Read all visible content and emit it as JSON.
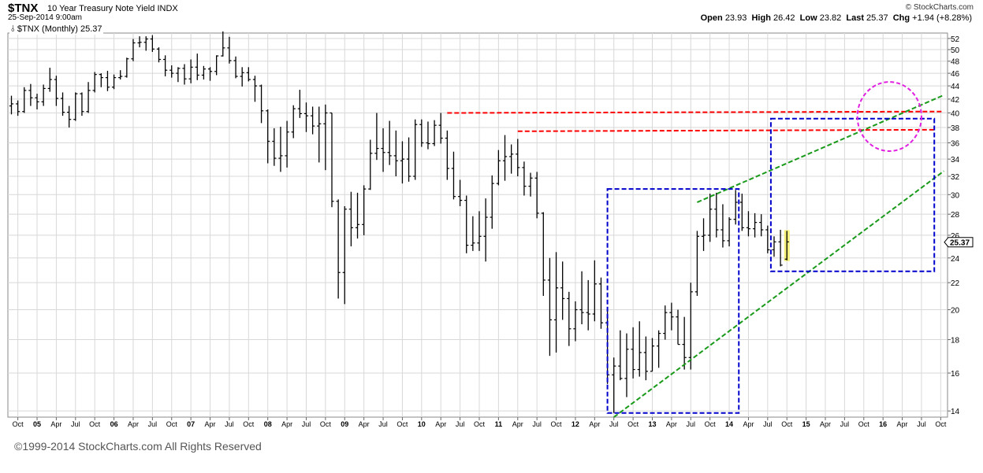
{
  "header": {
    "symbol": "$TNX",
    "name": "10 Year Treasury Note Yield",
    "exchange": "INDX",
    "date": "25-Sep-2014 9:00am",
    "watermark": "© StockCharts.com",
    "open_label": "Open",
    "open": "23.93",
    "high_label": "High",
    "high": "26.42",
    "low_label": "Low",
    "low": "23.82",
    "last_label": "Last",
    "last": "25.37",
    "chg_label": "Chg",
    "chg": "+1.94 (+8.28%)"
  },
  "legend": {
    "symbol": "$TNX",
    "period": "(Monthly)",
    "value": "25.37"
  },
  "footer": {
    "copyright": "©1999-2014 StockCharts.com All Rights Reserved"
  },
  "colors": {
    "bars": "#000000",
    "grid": "#d8d8d8",
    "resistance": "#ff0000",
    "channel": "#1a9a1a",
    "box": "#0000cc",
    "circle": "#e020e0",
    "highlight": "#f5f07a"
  },
  "chart_data": {
    "type": "ohlc-bar",
    "scale": "log",
    "ylim": [
      13.7,
      53
    ],
    "y_ticks": [
      14,
      16,
      18,
      20,
      22,
      24,
      26,
      28,
      30,
      32,
      34,
      36,
      38,
      40,
      42,
      44,
      46,
      48,
      50,
      52
    ],
    "x_start": "2004-09",
    "x_end": "2015-10",
    "x_ticks": [
      {
        "m": 1,
        "label": "Oct"
      },
      {
        "m": 4,
        "label": "05"
      },
      {
        "m": 7,
        "label": "Apr"
      },
      {
        "m": 10,
        "label": "Jul"
      },
      {
        "m": 13,
        "label": "Oct"
      },
      {
        "m": 16,
        "label": "06"
      },
      {
        "m": 19,
        "label": "Apr"
      },
      {
        "m": 22,
        "label": "Jul"
      },
      {
        "m": 25,
        "label": "Oct"
      },
      {
        "m": 28,
        "label": "07"
      },
      {
        "m": 31,
        "label": "Apr"
      },
      {
        "m": 34,
        "label": "Jul"
      },
      {
        "m": 37,
        "label": "Oct"
      },
      {
        "m": 40,
        "label": "08"
      },
      {
        "m": 43,
        "label": "Apr"
      },
      {
        "m": 46,
        "label": "Jul"
      },
      {
        "m": 49,
        "label": "Oct"
      },
      {
        "m": 52,
        "label": "09"
      },
      {
        "m": 55,
        "label": "Apr"
      },
      {
        "m": 58,
        "label": "Jul"
      },
      {
        "m": 61,
        "label": "Oct"
      },
      {
        "m": 64,
        "label": "10"
      },
      {
        "m": 67,
        "label": "Apr"
      },
      {
        "m": 70,
        "label": "Jul"
      },
      {
        "m": 73,
        "label": "Oct"
      },
      {
        "m": 76,
        "label": "11"
      },
      {
        "m": 79,
        "label": "Apr"
      },
      {
        "m": 82,
        "label": "Jul"
      },
      {
        "m": 85,
        "label": "Oct"
      },
      {
        "m": 88,
        "label": "12"
      },
      {
        "m": 91,
        "label": "Apr"
      },
      {
        "m": 94,
        "label": "Jul"
      },
      {
        "m": 97,
        "label": "Oct"
      },
      {
        "m": 100,
        "label": "13"
      },
      {
        "m": 103,
        "label": "Apr"
      },
      {
        "m": 106,
        "label": "Jul"
      },
      {
        "m": 109,
        "label": "Oct"
      },
      {
        "m": 112,
        "label": "14"
      },
      {
        "m": 115,
        "label": "Apr"
      },
      {
        "m": 118,
        "label": "Jul"
      },
      {
        "m": 121,
        "label": "Oct"
      },
      {
        "m": 124,
        "label": "15"
      },
      {
        "m": 127,
        "label": "Apr"
      },
      {
        "m": 130,
        "label": "Jul"
      },
      {
        "m": 133,
        "label": "Oct"
      },
      {
        "m": 136,
        "label": "16"
      },
      {
        "m": 139,
        "label": "Apr"
      },
      {
        "m": 142,
        "label": "Jul"
      },
      {
        "m": 145,
        "label": "Oct"
      }
    ],
    "bars": [
      {
        "m": 0,
        "o": 41.0,
        "h": 42.5,
        "l": 39.8,
        "c": 41.3
      },
      {
        "m": 1,
        "o": 41.3,
        "h": 41.8,
        "l": 39.6,
        "c": 40.2
      },
      {
        "m": 2,
        "o": 40.2,
        "h": 43.8,
        "l": 40.0,
        "c": 43.3
      },
      {
        "m": 3,
        "o": 43.3,
        "h": 44.3,
        "l": 41.0,
        "c": 42.2
      },
      {
        "m": 4,
        "o": 42.2,
        "h": 42.8,
        "l": 40.5,
        "c": 41.6
      },
      {
        "m": 5,
        "o": 41.6,
        "h": 44.2,
        "l": 41.0,
        "c": 43.6
      },
      {
        "m": 6,
        "o": 43.6,
        "h": 46.9,
        "l": 43.1,
        "c": 45.0
      },
      {
        "m": 7,
        "o": 45.0,
        "h": 45.6,
        "l": 41.0,
        "c": 42.1
      },
      {
        "m": 8,
        "o": 42.1,
        "h": 43.0,
        "l": 39.6,
        "c": 40.1
      },
      {
        "m": 9,
        "o": 40.1,
        "h": 41.0,
        "l": 38.0,
        "c": 39.1
      },
      {
        "m": 10,
        "o": 39.1,
        "h": 43.0,
        "l": 38.9,
        "c": 42.8
      },
      {
        "m": 11,
        "o": 42.8,
        "h": 43.0,
        "l": 39.6,
        "c": 40.2
      },
      {
        "m": 12,
        "o": 40.2,
        "h": 44.6,
        "l": 40.0,
        "c": 43.3
      },
      {
        "m": 13,
        "o": 43.3,
        "h": 46.2,
        "l": 43.0,
        "c": 45.8
      },
      {
        "m": 14,
        "o": 45.8,
        "h": 46.0,
        "l": 43.8,
        "c": 45.3
      },
      {
        "m": 15,
        "o": 45.3,
        "h": 46.4,
        "l": 43.2,
        "c": 43.8
      },
      {
        "m": 16,
        "o": 43.8,
        "h": 45.8,
        "l": 43.5,
        "c": 45.3
      },
      {
        "m": 17,
        "o": 45.3,
        "h": 46.5,
        "l": 45.0,
        "c": 45.5
      },
      {
        "m": 18,
        "o": 45.5,
        "h": 48.6,
        "l": 45.3,
        "c": 48.4
      },
      {
        "m": 19,
        "o": 48.4,
        "h": 51.9,
        "l": 48.0,
        "c": 51.2
      },
      {
        "m": 20,
        "o": 51.2,
        "h": 52.4,
        "l": 50.4,
        "c": 51.3
      },
      {
        "m": 21,
        "o": 51.3,
        "h": 52.4,
        "l": 49.8,
        "c": 51.9
      },
      {
        "m": 22,
        "o": 51.9,
        "h": 52.6,
        "l": 49.6,
        "c": 50.1
      },
      {
        "m": 23,
        "o": 50.1,
        "h": 50.4,
        "l": 47.8,
        "c": 48.3
      },
      {
        "m": 24,
        "o": 48.3,
        "h": 49.0,
        "l": 45.5,
        "c": 46.5
      },
      {
        "m": 25,
        "o": 46.5,
        "h": 47.3,
        "l": 45.3,
        "c": 46.0
      },
      {
        "m": 26,
        "o": 46.0,
        "h": 47.0,
        "l": 44.6,
        "c": 46.8
      },
      {
        "m": 27,
        "o": 46.8,
        "h": 47.5,
        "l": 44.2,
        "c": 45.1
      },
      {
        "m": 28,
        "o": 45.1,
        "h": 48.3,
        "l": 44.4,
        "c": 47.0
      },
      {
        "m": 29,
        "o": 47.0,
        "h": 49.3,
        "l": 44.9,
        "c": 45.7
      },
      {
        "m": 30,
        "o": 45.7,
        "h": 47.2,
        "l": 45.0,
        "c": 46.7
      },
      {
        "m": 31,
        "o": 46.7,
        "h": 47.0,
        "l": 44.8,
        "c": 46.3
      },
      {
        "m": 32,
        "o": 46.3,
        "h": 49.0,
        "l": 45.7,
        "c": 48.9
      },
      {
        "m": 33,
        "o": 48.9,
        "h": 53.3,
        "l": 48.8,
        "c": 50.3
      },
      {
        "m": 34,
        "o": 50.3,
        "h": 52.3,
        "l": 47.6,
        "c": 48.1
      },
      {
        "m": 35,
        "o": 48.1,
        "h": 48.8,
        "l": 45.2,
        "c": 45.5
      },
      {
        "m": 36,
        "o": 45.5,
        "h": 47.0,
        "l": 43.9,
        "c": 46.1
      },
      {
        "m": 37,
        "o": 46.1,
        "h": 47.0,
        "l": 44.7,
        "c": 45.0
      },
      {
        "m": 38,
        "o": 45.0,
        "h": 45.6,
        "l": 41.6,
        "c": 44.0
      },
      {
        "m": 39,
        "o": 44.0,
        "h": 44.2,
        "l": 38.6,
        "c": 40.3
      },
      {
        "m": 40,
        "o": 40.3,
        "h": 40.5,
        "l": 33.5,
        "c": 36.2
      },
      {
        "m": 41,
        "o": 36.2,
        "h": 37.9,
        "l": 33.2,
        "c": 34.1
      },
      {
        "m": 42,
        "o": 34.1,
        "h": 38.1,
        "l": 32.5,
        "c": 34.4
      },
      {
        "m": 43,
        "o": 34.4,
        "h": 38.9,
        "l": 33.0,
        "c": 37.4
      },
      {
        "m": 44,
        "o": 37.4,
        "h": 41.1,
        "l": 36.6,
        "c": 40.6
      },
      {
        "m": 45,
        "o": 40.6,
        "h": 43.4,
        "l": 39.3,
        "c": 39.9
      },
      {
        "m": 46,
        "o": 39.9,
        "h": 41.5,
        "l": 37.4,
        "c": 39.6
      },
      {
        "m": 47,
        "o": 39.6,
        "h": 40.9,
        "l": 37.1,
        "c": 38.2
      },
      {
        "m": 48,
        "o": 38.2,
        "h": 40.9,
        "l": 33.6,
        "c": 38.5
      },
      {
        "m": 49,
        "o": 38.5,
        "h": 41.2,
        "l": 32.7,
        "c": 40.0
      },
      {
        "m": 50,
        "o": 40.0,
        "h": 40.0,
        "l": 28.7,
        "c": 29.3
      },
      {
        "m": 51,
        "o": 29.3,
        "h": 29.5,
        "l": 20.8,
        "c": 22.8
      },
      {
        "m": 52,
        "o": 22.8,
        "h": 28.8,
        "l": 20.4,
        "c": 28.5
      },
      {
        "m": 53,
        "o": 28.5,
        "h": 30.3,
        "l": 25.0,
        "c": 26.7
      },
      {
        "m": 54,
        "o": 26.7,
        "h": 30.2,
        "l": 25.7,
        "c": 27.0
      },
      {
        "m": 55,
        "o": 27.0,
        "h": 31.0,
        "l": 26.0,
        "c": 30.6
      },
      {
        "m": 56,
        "o": 30.6,
        "h": 36.4,
        "l": 30.5,
        "c": 34.7
      },
      {
        "m": 57,
        "o": 34.7,
        "h": 40.0,
        "l": 33.9,
        "c": 35.3
      },
      {
        "m": 58,
        "o": 35.3,
        "h": 37.9,
        "l": 32.5,
        "c": 34.8
      },
      {
        "m": 59,
        "o": 34.8,
        "h": 38.9,
        "l": 33.3,
        "c": 34.4
      },
      {
        "m": 60,
        "o": 34.4,
        "h": 37.6,
        "l": 32.0,
        "c": 33.8
      },
      {
        "m": 61,
        "o": 33.8,
        "h": 36.2,
        "l": 31.2,
        "c": 34.0
      },
      {
        "m": 62,
        "o": 34.0,
        "h": 36.7,
        "l": 31.4,
        "c": 32.0
      },
      {
        "m": 63,
        "o": 32.0,
        "h": 39.1,
        "l": 31.6,
        "c": 38.4
      },
      {
        "m": 64,
        "o": 38.4,
        "h": 39.1,
        "l": 35.5,
        "c": 36.0
      },
      {
        "m": 65,
        "o": 36.0,
        "h": 38.8,
        "l": 35.2,
        "c": 35.9
      },
      {
        "m": 66,
        "o": 35.9,
        "h": 39.0,
        "l": 35.6,
        "c": 38.3
      },
      {
        "m": 67,
        "o": 38.3,
        "h": 40.0,
        "l": 35.9,
        "c": 36.6
      },
      {
        "m": 68,
        "o": 36.6,
        "h": 37.6,
        "l": 31.6,
        "c": 32.9
      },
      {
        "m": 69,
        "o": 32.9,
        "h": 34.9,
        "l": 29.5,
        "c": 29.8
      },
      {
        "m": 70,
        "o": 29.8,
        "h": 31.6,
        "l": 28.8,
        "c": 29.4
      },
      {
        "m": 71,
        "o": 29.4,
        "h": 29.9,
        "l": 24.4,
        "c": 25.1
      },
      {
        "m": 72,
        "o": 25.1,
        "h": 27.8,
        "l": 24.6,
        "c": 25.3
      },
      {
        "m": 73,
        "o": 25.3,
        "h": 28.3,
        "l": 24.6,
        "c": 25.9
      },
      {
        "m": 74,
        "o": 25.9,
        "h": 29.6,
        "l": 23.7,
        "c": 27.7
      },
      {
        "m": 75,
        "o": 27.7,
        "h": 32.1,
        "l": 26.6,
        "c": 31.2
      },
      {
        "m": 76,
        "o": 31.2,
        "h": 35.1,
        "l": 31.0,
        "c": 33.8
      },
      {
        "m": 77,
        "o": 33.8,
        "h": 37.0,
        "l": 31.5,
        "c": 34.3
      },
      {
        "m": 78,
        "o": 34.3,
        "h": 35.8,
        "l": 32.3,
        "c": 34.6
      },
      {
        "m": 79,
        "o": 34.6,
        "h": 36.5,
        "l": 32.0,
        "c": 33.0
      },
      {
        "m": 80,
        "o": 33.0,
        "h": 33.7,
        "l": 29.9,
        "c": 30.9
      },
      {
        "m": 81,
        "o": 30.9,
        "h": 32.4,
        "l": 29.8,
        "c": 31.8
      },
      {
        "m": 82,
        "o": 31.8,
        "h": 32.5,
        "l": 27.6,
        "c": 28.1
      },
      {
        "m": 83,
        "o": 28.1,
        "h": 28.2,
        "l": 21.0,
        "c": 22.2
      },
      {
        "m": 84,
        "o": 22.2,
        "h": 24.0,
        "l": 17.0,
        "c": 19.3
      },
      {
        "m": 85,
        "o": 19.3,
        "h": 24.5,
        "l": 17.2,
        "c": 21.6
      },
      {
        "m": 86,
        "o": 21.6,
        "h": 23.7,
        "l": 19.3,
        "c": 20.8
      },
      {
        "m": 87,
        "o": 20.8,
        "h": 21.3,
        "l": 17.6,
        "c": 18.7
      },
      {
        "m": 88,
        "o": 18.7,
        "h": 20.6,
        "l": 17.9,
        "c": 20.0
      },
      {
        "m": 89,
        "o": 20.0,
        "h": 22.9,
        "l": 19.0,
        "c": 19.8
      },
      {
        "m": 90,
        "o": 19.8,
        "h": 22.2,
        "l": 18.6,
        "c": 19.7
      },
      {
        "m": 91,
        "o": 19.7,
        "h": 23.8,
        "l": 19.2,
        "c": 21.9
      },
      {
        "m": 92,
        "o": 21.9,
        "h": 22.4,
        "l": 18.7,
        "c": 19.1
      },
      {
        "m": 93,
        "o": 19.1,
        "h": 20.0,
        "l": 15.4,
        "c": 15.9
      },
      {
        "m": 94,
        "o": 15.9,
        "h": 16.9,
        "l": 13.9,
        "c": 16.4
      },
      {
        "m": 95,
        "o": 16.4,
        "h": 18.6,
        "l": 15.6,
        "c": 15.7
      },
      {
        "m": 96,
        "o": 15.7,
        "h": 18.4,
        "l": 14.7,
        "c": 17.4
      },
      {
        "m": 97,
        "o": 17.4,
        "h": 18.8,
        "l": 15.7,
        "c": 16.2
      },
      {
        "m": 98,
        "o": 16.2,
        "h": 19.2,
        "l": 15.8,
        "c": 17.2
      },
      {
        "m": 99,
        "o": 17.2,
        "h": 18.2,
        "l": 15.6,
        "c": 16.1
      },
      {
        "m": 100,
        "o": 16.1,
        "h": 18.1,
        "l": 16.1,
        "c": 17.6
      },
      {
        "m": 101,
        "o": 17.6,
        "h": 18.6,
        "l": 16.3,
        "c": 18.4
      },
      {
        "m": 102,
        "o": 18.4,
        "h": 20.3,
        "l": 18.0,
        "c": 19.8
      },
      {
        "m": 103,
        "o": 19.8,
        "h": 20.5,
        "l": 18.6,
        "c": 19.5
      },
      {
        "m": 104,
        "o": 19.5,
        "h": 20.0,
        "l": 17.7,
        "c": 17.7
      },
      {
        "m": 105,
        "o": 17.7,
        "h": 19.5,
        "l": 16.2,
        "c": 16.9
      },
      {
        "m": 106,
        "o": 16.9,
        "h": 22.0,
        "l": 16.2,
        "c": 21.3
      },
      {
        "m": 107,
        "o": 21.3,
        "h": 26.4,
        "l": 21.0,
        "c": 25.9
      },
      {
        "m": 108,
        "o": 25.9,
        "h": 27.6,
        "l": 24.6,
        "c": 26.0
      },
      {
        "m": 109,
        "o": 26.0,
        "h": 30.1,
        "l": 25.4,
        "c": 28.5
      },
      {
        "m": 110,
        "o": 28.5,
        "h": 30.2,
        "l": 25.8,
        "c": 26.5
      },
      {
        "m": 111,
        "o": 26.5,
        "h": 29.0,
        "l": 24.9,
        "c": 25.5
      },
      {
        "m": 112,
        "o": 25.5,
        "h": 27.7,
        "l": 25.0,
        "c": 27.5
      },
      {
        "m": 113,
        "o": 27.5,
        "h": 30.5,
        "l": 27.0,
        "c": 29.2
      },
      {
        "m": 114,
        "o": 29.2,
        "h": 30.1,
        "l": 26.4,
        "c": 26.7
      },
      {
        "m": 115,
        "o": 26.7,
        "h": 28.3,
        "l": 25.9,
        "c": 26.6
      },
      {
        "m": 116,
        "o": 26.6,
        "h": 28.1,
        "l": 25.8,
        "c": 27.2
      },
      {
        "m": 117,
        "o": 27.2,
        "h": 28.0,
        "l": 25.9,
        "c": 26.5
      },
      {
        "m": 118,
        "o": 26.5,
        "h": 26.9,
        "l": 24.4,
        "c": 24.7
      },
      {
        "m": 119,
        "o": 24.7,
        "h": 25.9,
        "l": 24.1,
        "c": 25.4
      },
      {
        "m": 120,
        "o": 25.4,
        "h": 26.5,
        "l": 23.3,
        "c": 23.4
      },
      {
        "m": 121,
        "o": 23.9,
        "h": 26.4,
        "l": 23.8,
        "c": 25.4
      }
    ],
    "annotations": [
      {
        "type": "resistance-line",
        "from": {
          "m": 68,
          "y": 40.0
        },
        "to": {
          "m": 145.5,
          "y": 40.2
        }
      },
      {
        "type": "resistance-line",
        "from": {
          "m": 79,
          "y": 37.5
        },
        "to": {
          "m": 144,
          "y": 37.7
        }
      },
      {
        "type": "channel-line",
        "from": {
          "m": 107,
          "y": 29.2
        },
        "to": {
          "m": 145.5,
          "y": 42.6
        }
      },
      {
        "type": "channel-line",
        "from": {
          "m": 94,
          "y": 13.7
        },
        "to": {
          "m": 145.5,
          "y": 32.6
        }
      },
      {
        "type": "box",
        "from": {
          "m": 93,
          "y": 30.6
        },
        "to": {
          "m": 113.5,
          "y": 13.9
        }
      },
      {
        "type": "box",
        "from": {
          "m": 118.5,
          "y": 39.2
        },
        "to": {
          "m": 144,
          "y": 22.9
        }
      },
      {
        "type": "ellipse",
        "center": {
          "m": 137,
          "y": 39.5
        },
        "rx_months": 5,
        "ry_ratio": 0.09
      }
    ],
    "last_price_flag": "25.37"
  }
}
